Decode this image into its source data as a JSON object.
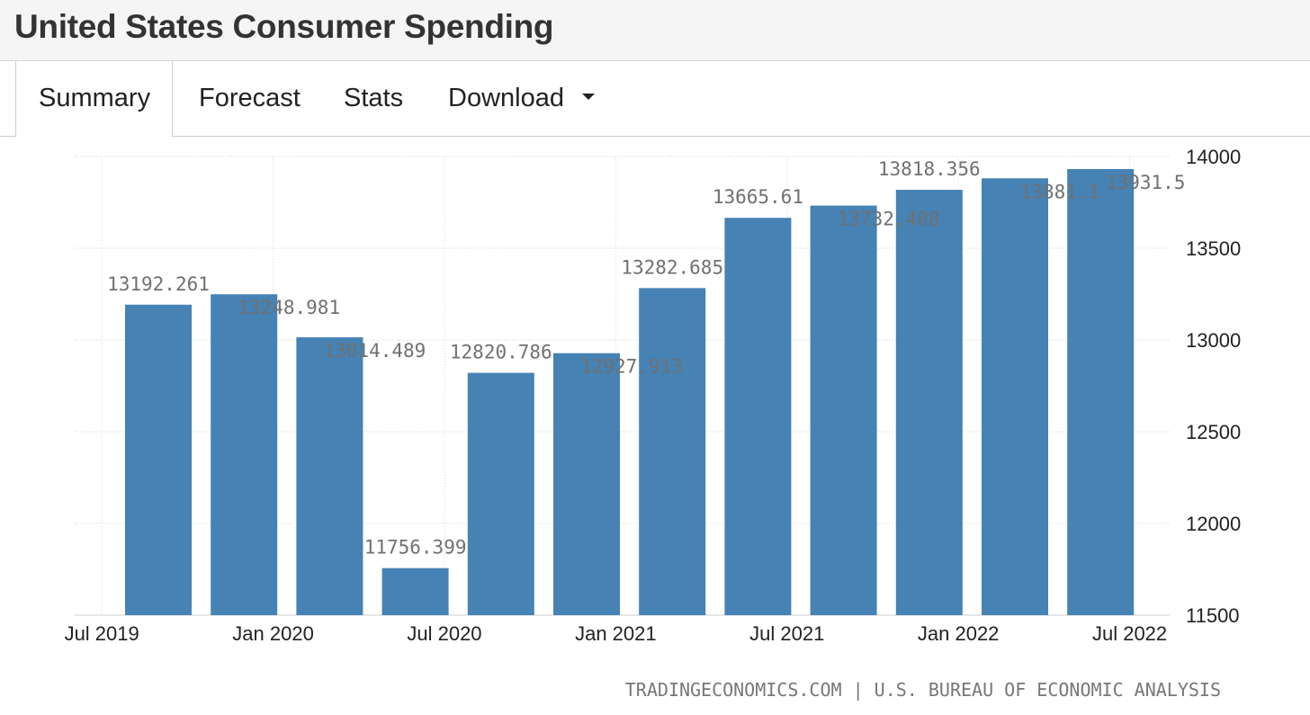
{
  "header": {
    "title": "United States Consumer Spending"
  },
  "tabs": [
    {
      "label": "Summary",
      "active": true
    },
    {
      "label": "Forecast",
      "active": false
    },
    {
      "label": "Stats",
      "active": false
    },
    {
      "label": "Download",
      "active": false,
      "dropdown": true
    }
  ],
  "chart_data": {
    "type": "bar",
    "title": "United States Consumer Spending",
    "series": [
      {
        "name": "Consumer Spending",
        "color": "#4682b4",
        "values": [
          13192.261,
          13248.981,
          13014.489,
          11756.399,
          12820.786,
          12927.913,
          13282.685,
          13665.61,
          13732.408,
          13818.356,
          13881.1,
          13931.5
        ]
      }
    ],
    "value_labels": [
      "13192.261",
      "13248.981",
      "13014.489",
      "11756.399",
      "12820.786",
      "12927.913",
      "13282.685",
      "13665.61",
      "13732.408",
      "13818.356",
      "13881.1",
      "13931.5"
    ],
    "x_tick_labels": [
      "Jul 2019",
      "Jan 2020",
      "Jul 2020",
      "Jan 2021",
      "Jul 2021",
      "Jan 2022",
      "Jul 2022"
    ],
    "y_ticks": [
      11500,
      12000,
      12500,
      13000,
      13500,
      14000
    ],
    "ylim": [
      11500,
      14000
    ],
    "y_axis_side": "right",
    "grid": true,
    "xlabel": "",
    "ylabel": ""
  },
  "footer": {
    "source": "TRADINGECONOMICS.COM | U.S. BUREAU OF ECONOMIC ANALYSIS"
  }
}
